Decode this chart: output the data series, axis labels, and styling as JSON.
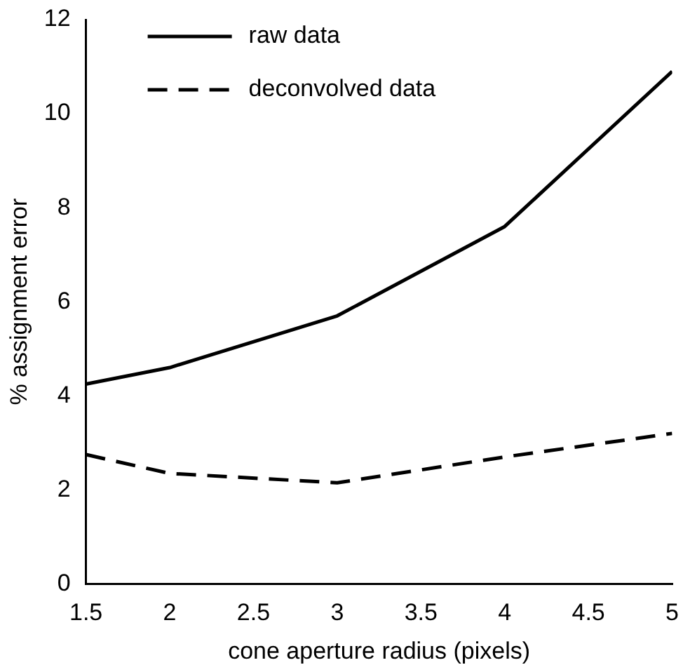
{
  "chart_data": {
    "type": "line",
    "xlabel": "cone aperture radius (pixels)",
    "ylabel": "% assignment error",
    "x": [
      1.5,
      2,
      3,
      4,
      5
    ],
    "series": [
      {
        "name": "raw data",
        "color": "#000000",
        "line_style": "solid",
        "values": [
          4.25,
          4.6,
          5.7,
          7.6,
          10.9
        ]
      },
      {
        "name": "deconvolved data",
        "color": "#000000",
        "line_style": "dashed",
        "values": [
          2.75,
          2.35,
          2.15,
          2.7,
          3.2
        ]
      }
    ],
    "xlim": [
      1.5,
      5
    ],
    "xticks": [
      1.5,
      2,
      2.5,
      3,
      3.5,
      4,
      4.5,
      5
    ],
    "ylim": [
      0,
      12
    ],
    "yticks": [
      0,
      2,
      4,
      6,
      8,
      10,
      12
    ],
    "grid": false,
    "legend": "top left",
    "marker": "none"
  }
}
